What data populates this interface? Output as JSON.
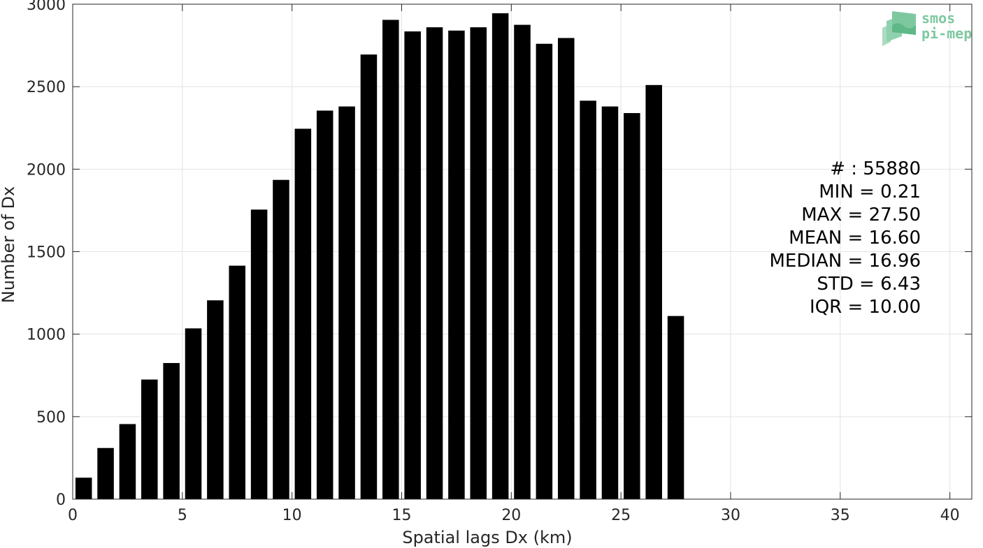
{
  "logo": {
    "line1": "smos",
    "line2": "pi-mep",
    "color": "#7ec8a0"
  },
  "stats": [
    "# : 55880",
    "MIN = 0.21",
    "MAX =  27.50",
    "MEAN = 16.60",
    "MEDIAN = 16.96",
    "STD = 6.43",
    "IQR = 10.00"
  ],
  "chart_data": {
    "type": "bar",
    "xlabel": "Spatial lags Dx (km)",
    "ylabel": "Number of Dx",
    "xlim": [
      0,
      41
    ],
    "ylim": [
      0,
      3000
    ],
    "xticks": [
      0,
      5,
      10,
      15,
      20,
      25,
      30,
      35,
      40
    ],
    "yticks": [
      0,
      500,
      1000,
      1500,
      2000,
      2500,
      3000
    ],
    "grid": true,
    "bar_color": "#000000",
    "bin_width": 1,
    "x": [
      0.5,
      1.5,
      2.5,
      3.5,
      4.5,
      5.5,
      6.5,
      7.5,
      8.5,
      9.5,
      10.5,
      11.5,
      12.5,
      13.5,
      14.5,
      15.5,
      16.5,
      17.5,
      18.5,
      19.5,
      20.5,
      21.5,
      22.5,
      23.5,
      24.5,
      25.5,
      26.5,
      27.5
    ],
    "values": [
      130,
      310,
      455,
      725,
      825,
      1035,
      1205,
      1415,
      1755,
      1935,
      2245,
      2355,
      2380,
      2695,
      2905,
      2835,
      2860,
      2840,
      2860,
      2945,
      2875,
      2760,
      2795,
      2415,
      2380,
      2340,
      2510,
      1110
    ]
  }
}
